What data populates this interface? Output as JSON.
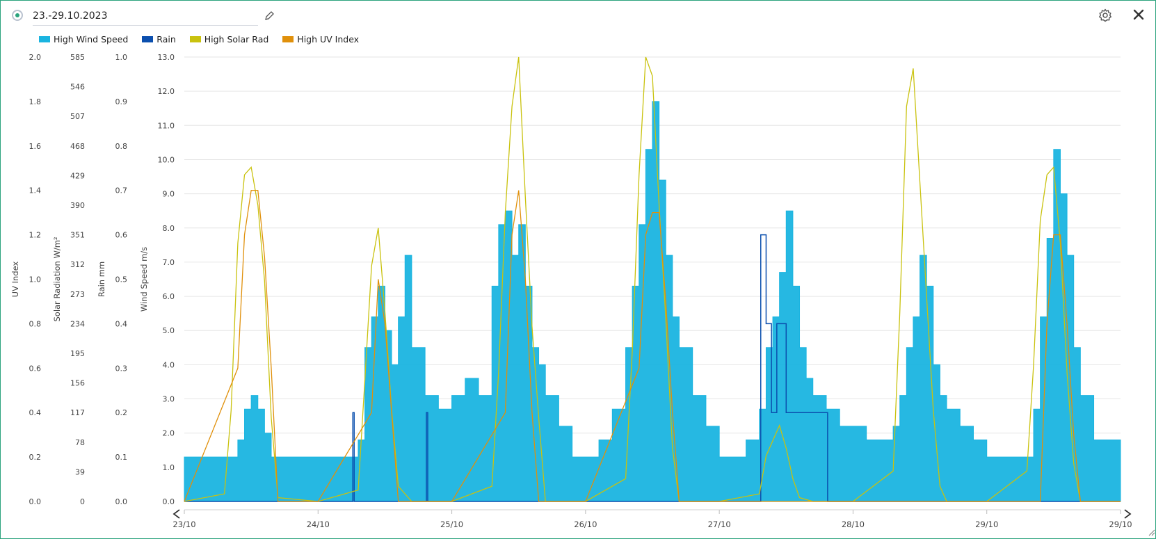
{
  "header": {
    "date_range": "23.-29.10.2023"
  },
  "colors": {
    "wind": "#1ab4e0",
    "rain": "#0b4fae",
    "solar": "#c9c20e",
    "uv": "#e0900b",
    "accent": "#2aa37d"
  },
  "icons": {
    "edit": "pencil-icon",
    "settings": "gear-icon",
    "close": "close-icon",
    "prev": "chevron-left-icon",
    "next": "chevron-right-icon",
    "resize": "resize-icon"
  },
  "legend": [
    {
      "label": "High Wind Speed",
      "color": "#1ab4e0"
    },
    {
      "label": "Rain",
      "color": "#0b4fae"
    },
    {
      "label": "High Solar Rad",
      "color": "#c9c20e"
    },
    {
      "label": "High UV Index",
      "color": "#e0900b"
    }
  ],
  "chart_data": {
    "type": "line",
    "legend_position": "top-left",
    "grid": true,
    "x_ticks": [
      "23/10",
      "24/10",
      "25/10",
      "26/10",
      "27/10",
      "28/10",
      "29/10",
      "29/10"
    ],
    "x_range_days": [
      0,
      7
    ],
    "axes": {
      "uv": {
        "label": "UV Index",
        "ylim": [
          0,
          2.0
        ],
        "ticks": [
          "0.0",
          "0.2",
          "0.4",
          "0.6",
          "0.8",
          "1.0",
          "1.2",
          "1.4",
          "1.6",
          "1.8",
          "2.0"
        ]
      },
      "solar": {
        "label": "Solar Radiation W/m²",
        "ylim": [
          0,
          585
        ],
        "ticks": [
          "0",
          "39",
          "78",
          "117",
          "156",
          "195",
          "234",
          "273",
          "312",
          "351",
          "390",
          "429",
          "468",
          "507",
          "546",
          "585"
        ]
      },
      "rain": {
        "label": "Rain mm",
        "ylim": [
          0,
          1.0
        ],
        "ticks": [
          "0.0",
          "0.1",
          "0.2",
          "0.3",
          "0.4",
          "0.5",
          "0.6",
          "0.7",
          "0.8",
          "0.9",
          "1.0"
        ]
      },
      "wind": {
        "label": "Wind Speed m/s",
        "ylim": [
          0,
          13.0
        ],
        "ticks": [
          "0.0",
          "1.0",
          "2.0",
          "3.0",
          "4.0",
          "5.0",
          "6.0",
          "7.0",
          "8.0",
          "9.0",
          "10.0",
          "11.0",
          "12.0",
          "13.0"
        ]
      }
    },
    "series": [
      {
        "name": "High Wind Speed",
        "axis": "wind",
        "x": [
          0.0,
          0.1,
          0.2,
          0.3,
          0.4,
          0.45,
          0.5,
          0.55,
          0.6,
          0.65,
          0.7,
          0.8,
          0.9,
          1.0,
          1.1,
          1.2,
          1.3,
          1.35,
          1.4,
          1.45,
          1.5,
          1.55,
          1.6,
          1.65,
          1.7,
          1.8,
          1.9,
          2.0,
          2.1,
          2.2,
          2.3,
          2.35,
          2.4,
          2.45,
          2.5,
          2.55,
          2.6,
          2.65,
          2.7,
          2.8,
          2.9,
          3.0,
          3.1,
          3.2,
          3.3,
          3.35,
          3.4,
          3.45,
          3.5,
          3.55,
          3.6,
          3.65,
          3.7,
          3.8,
          3.9,
          4.0,
          4.1,
          4.2,
          4.3,
          4.35,
          4.4,
          4.45,
          4.5,
          4.55,
          4.6,
          4.65,
          4.7,
          4.8,
          4.9,
          5.0,
          5.1,
          5.2,
          5.3,
          5.35,
          5.4,
          5.45,
          5.5,
          5.55,
          5.6,
          5.65,
          5.7,
          5.8,
          5.9,
          6.0,
          6.1,
          6.2,
          6.3,
          6.35,
          6.4,
          6.45,
          6.5,
          6.55,
          6.6,
          6.65,
          6.7,
          6.8,
          6.9,
          7.0
        ],
        "values": [
          1.3,
          1.3,
          1.3,
          1.3,
          1.8,
          2.7,
          3.1,
          2.7,
          2.0,
          1.3,
          1.3,
          1.3,
          1.3,
          1.3,
          1.3,
          1.3,
          1.8,
          4.5,
          5.4,
          6.3,
          5.0,
          4.0,
          5.4,
          7.2,
          4.5,
          3.1,
          2.7,
          3.1,
          3.6,
          3.1,
          6.3,
          8.1,
          8.5,
          7.2,
          8.1,
          6.3,
          4.5,
          4.0,
          3.1,
          2.2,
          1.3,
          1.3,
          1.8,
          2.7,
          4.5,
          6.3,
          8.1,
          10.3,
          11.7,
          9.4,
          7.2,
          5.4,
          4.5,
          3.1,
          2.2,
          1.3,
          1.3,
          1.8,
          2.7,
          4.5,
          5.4,
          6.7,
          8.5,
          6.3,
          4.5,
          3.6,
          3.1,
          2.7,
          2.2,
          2.2,
          1.8,
          1.8,
          2.2,
          3.1,
          4.5,
          5.4,
          7.2,
          6.3,
          4.0,
          3.1,
          2.7,
          2.2,
          1.8,
          1.3,
          1.3,
          1.3,
          1.3,
          2.7,
          5.4,
          7.7,
          10.3,
          9.0,
          7.2,
          4.5,
          3.1,
          1.8,
          1.8,
          1.8
        ]
      },
      {
        "name": "Rain",
        "axis": "rain",
        "x": [
          0.0,
          1.25,
          1.26,
          1.27,
          1.8,
          1.81,
          1.82,
          3.0,
          4.3,
          4.31,
          4.34,
          4.35,
          4.38,
          4.39,
          4.42,
          4.43,
          4.5,
          4.6,
          4.7,
          4.8,
          4.81,
          4.82,
          7.0
        ],
        "values": [
          0.0,
          0.0,
          0.2,
          0.0,
          0.0,
          0.2,
          0.0,
          0.0,
          0.0,
          0.6,
          0.6,
          0.4,
          0.4,
          0.2,
          0.2,
          0.4,
          0.2,
          0.2,
          0.2,
          0.2,
          0.0,
          0.0,
          0.0
        ]
      },
      {
        "name": "High Solar Rad",
        "axis": "solar",
        "x": [
          0.0,
          0.3,
          0.35,
          0.4,
          0.45,
          0.5,
          0.55,
          0.6,
          0.65,
          0.7,
          1.0,
          1.3,
          1.35,
          1.4,
          1.45,
          1.5,
          1.55,
          1.6,
          1.7,
          2.0,
          2.3,
          2.35,
          2.4,
          2.45,
          2.5,
          2.55,
          2.6,
          2.65,
          2.7,
          3.0,
          3.3,
          3.35,
          3.4,
          3.45,
          3.5,
          3.55,
          3.6,
          3.65,
          3.7,
          4.0,
          4.3,
          4.35,
          4.4,
          4.45,
          4.5,
          4.55,
          4.6,
          4.7,
          5.0,
          5.3,
          5.35,
          5.4,
          5.45,
          5.5,
          5.55,
          5.6,
          5.65,
          5.7,
          6.0,
          6.3,
          6.35,
          6.4,
          6.45,
          6.5,
          6.55,
          6.6,
          6.65,
          6.7,
          7.0
        ],
        "values": [
          0,
          10,
          120,
          340,
          430,
          440,
          390,
          290,
          110,
          5,
          0,
          15,
          160,
          310,
          360,
          250,
          120,
          20,
          0,
          0,
          20,
          170,
          380,
          520,
          585,
          400,
          230,
          110,
          0,
          0,
          30,
          200,
          430,
          585,
          560,
          390,
          240,
          70,
          0,
          0,
          10,
          60,
          80,
          100,
          70,
          30,
          5,
          0,
          0,
          40,
          250,
          520,
          570,
          420,
          270,
          120,
          20,
          0,
          0,
          40,
          180,
          370,
          430,
          440,
          340,
          170,
          50,
          0,
          0
        ]
      },
      {
        "name": "High UV Index",
        "axis": "uv",
        "x": [
          0.0,
          0.4,
          0.45,
          0.5,
          0.55,
          0.6,
          0.65,
          0.7,
          1.0,
          1.4,
          1.45,
          1.5,
          1.55,
          1.6,
          2.0,
          2.4,
          2.45,
          2.5,
          2.55,
          2.6,
          2.65,
          3.0,
          3.4,
          3.45,
          3.5,
          3.55,
          3.6,
          3.65,
          3.7,
          4.0,
          6.4,
          6.45,
          6.5,
          6.55,
          6.6,
          6.65,
          6.7,
          7.0
        ],
        "values": [
          0.0,
          0.6,
          1.2,
          1.4,
          1.4,
          1.1,
          0.6,
          0.0,
          0.0,
          0.4,
          1.0,
          0.8,
          0.4,
          0.0,
          0.0,
          0.4,
          1.2,
          1.4,
          1.0,
          0.4,
          0.0,
          0.0,
          0.6,
          1.2,
          1.3,
          1.3,
          0.9,
          0.4,
          0.0,
          0.0,
          0.0,
          0.8,
          1.2,
          1.2,
          0.8,
          0.3,
          0.0,
          0.0
        ]
      }
    ]
  }
}
